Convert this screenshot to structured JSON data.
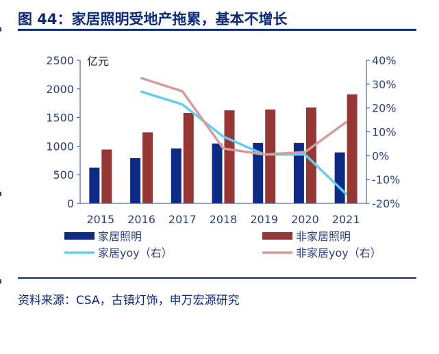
{
  "header": {
    "title": "图 44：家居照明受地产拖累，基本不增长"
  },
  "footer": {
    "source": "资料来源：CSA，古镇灯饰，申万宏源研究"
  },
  "chart_data": {
    "type": "bar",
    "categories": [
      "2015",
      "2016",
      "2017",
      "2018",
      "2019",
      "2020",
      "2021"
    ],
    "y_unit": "亿元",
    "ylim": [
      0,
      2500
    ],
    "yticks": [
      0,
      500,
      1000,
      1500,
      2000,
      2500
    ],
    "y2lim": [
      -20,
      40
    ],
    "y2ticks": [
      -20,
      -10,
      0,
      10,
      20,
      30,
      40
    ],
    "y2tick_labels": [
      "-20%",
      "-10%",
      "0%",
      "10%",
      "20%",
      "30%",
      "40%"
    ],
    "grid": false,
    "legend_position": "bottom",
    "series": [
      {
        "name": "家居照明",
        "kind": "bar",
        "axis": "left",
        "color": "#0d2a85",
        "values": [
          625,
          790,
          960,
          1045,
          1055,
          1055,
          890
        ]
      },
      {
        "name": "非家居照明",
        "kind": "bar",
        "axis": "left",
        "color": "#953735",
        "values": [
          940,
          1240,
          1580,
          1625,
          1640,
          1675,
          1905
        ]
      },
      {
        "name": "家居yoy（右）",
        "kind": "line",
        "axis": "right",
        "color": "#63cdf4",
        "values": [
          null,
          26.8,
          21.5,
          8.0,
          0.5,
          0.5,
          -16.0
        ]
      },
      {
        "name": "非家居yoy（右）",
        "kind": "line",
        "axis": "right",
        "color": "#d99a9a",
        "values": [
          null,
          32.5,
          27.0,
          3.0,
          0.5,
          1.5,
          14.0
        ]
      }
    ]
  }
}
